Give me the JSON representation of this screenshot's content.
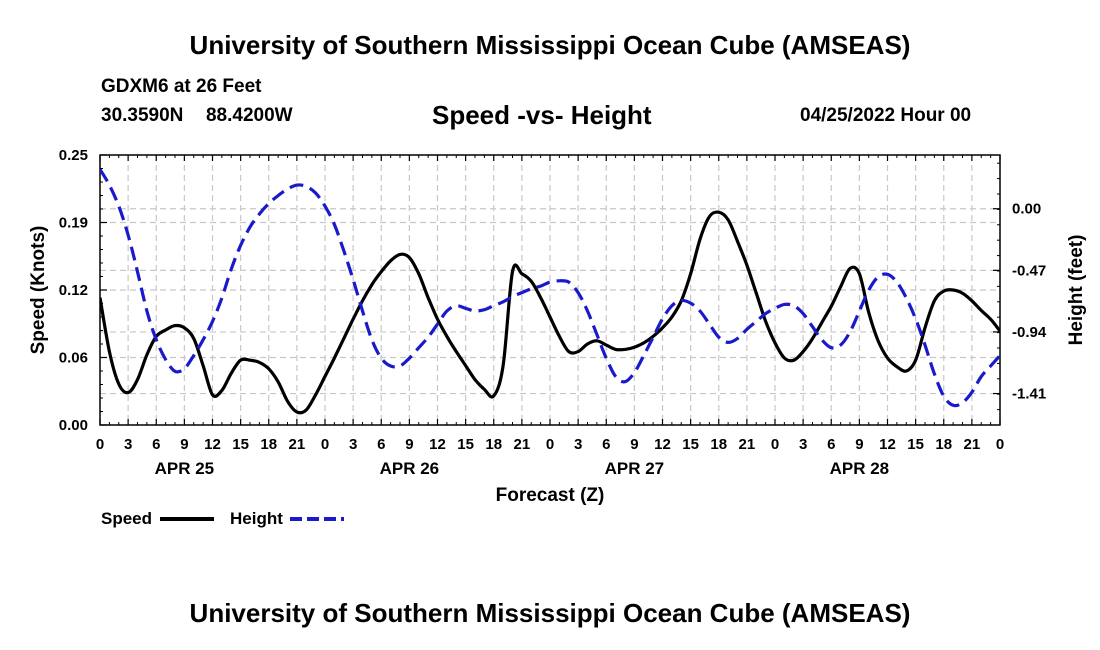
{
  "header": {
    "title": "University of Southern Mississippi Ocean Cube (AMSEAS)",
    "station": "GDXM6 at 26 Feet",
    "lat": "30.3590N",
    "lon": "88.4200W",
    "subtitle": "Speed -vs- Height",
    "datetime": "04/25/2022 Hour 00"
  },
  "footer": {
    "title": "University of Southern Mississippi Ocean Cube (AMSEAS)"
  },
  "colors": {
    "speed": "#000000",
    "height": "#1a1acc",
    "grid": "#c8c8c8"
  },
  "chart_data": {
    "type": "line",
    "xlabel": "Forecast (Z)",
    "ylabel_left": "Speed (Knots)",
    "ylabel_right": "Height (feet)",
    "x_range_hours": [
      0,
      96
    ],
    "x_tick_labels": [
      "0",
      "3",
      "6",
      "9",
      "12",
      "15",
      "18",
      "21",
      "0",
      "3",
      "6",
      "9",
      "12",
      "15",
      "18",
      "21",
      "0",
      "3",
      "6",
      "9",
      "12",
      "15",
      "18",
      "21",
      "0",
      "3",
      "6",
      "9",
      "12",
      "15",
      "18",
      "21",
      "0"
    ],
    "date_labels": [
      {
        "label": "APR 25",
        "hour": 9
      },
      {
        "label": "APR 26",
        "hour": 33
      },
      {
        "label": "APR 27",
        "hour": 57
      },
      {
        "label": "APR 28",
        "hour": 81
      }
    ],
    "y_left": {
      "range": [
        0.0,
        0.25
      ],
      "ticks": [
        "0.00",
        "0.06",
        "0.12",
        "0.19",
        "0.25"
      ],
      "tick_values": [
        0.0,
        0.0625,
        0.125,
        0.1875,
        0.25
      ]
    },
    "y_right": {
      "range": [
        -1.65,
        0.41
      ],
      "ticks": [
        "0.00",
        "-0.47",
        "-0.94",
        "-1.41"
      ],
      "tick_values": [
        0.0,
        -0.47,
        -0.94,
        -1.41
      ]
    },
    "series": [
      {
        "name": "Speed",
        "axis": "left",
        "x": [
          0,
          1,
          2,
          3,
          4,
          5,
          6,
          7,
          8,
          9,
          10,
          11,
          12,
          13,
          14,
          15,
          16,
          17,
          18,
          19,
          20,
          21,
          22,
          23,
          24,
          25,
          26,
          27,
          28,
          29,
          30,
          31,
          32,
          33,
          34,
          35,
          36,
          37,
          38,
          39,
          40,
          41,
          42,
          43,
          44,
          45,
          46,
          47,
          48,
          49,
          50,
          51,
          52,
          53,
          54,
          55,
          56,
          57,
          58,
          59,
          60,
          61,
          62,
          63,
          64,
          65,
          66,
          67,
          68,
          69,
          70,
          71,
          72,
          73,
          74,
          75,
          76,
          77,
          78,
          79,
          80,
          81,
          82,
          83,
          84,
          85,
          86,
          87,
          88,
          89,
          90,
          91,
          92,
          93,
          94,
          95,
          96
        ],
        "values": [
          0.118,
          0.068,
          0.038,
          0.03,
          0.042,
          0.065,
          0.082,
          0.088,
          0.092,
          0.09,
          0.08,
          0.055,
          0.028,
          0.032,
          0.048,
          0.06,
          0.06,
          0.058,
          0.052,
          0.04,
          0.022,
          0.012,
          0.014,
          0.028,
          0.045,
          0.062,
          0.08,
          0.098,
          0.115,
          0.13,
          0.142,
          0.152,
          0.158,
          0.155,
          0.14,
          0.118,
          0.098,
          0.082,
          0.068,
          0.055,
          0.042,
          0.033,
          0.027,
          0.055,
          0.142,
          0.14,
          0.133,
          0.118,
          0.1,
          0.082,
          0.068,
          0.068,
          0.075,
          0.078,
          0.074,
          0.07,
          0.07,
          0.072,
          0.076,
          0.082,
          0.09,
          0.1,
          0.115,
          0.14,
          0.172,
          0.193,
          0.197,
          0.19,
          0.17,
          0.148,
          0.122,
          0.096,
          0.076,
          0.062,
          0.06,
          0.068,
          0.08,
          0.095,
          0.11,
          0.128,
          0.145,
          0.14,
          0.104,
          0.078,
          0.062,
          0.054,
          0.05,
          0.06,
          0.09,
          0.115,
          0.124,
          0.125,
          0.122,
          0.115,
          0.106,
          0.098,
          0.087
        ]
      },
      {
        "name": "Height",
        "axis": "right",
        "x": [
          0,
          1,
          2,
          3,
          4,
          5,
          6,
          7,
          8,
          9,
          10,
          11,
          12,
          13,
          14,
          15,
          16,
          17,
          18,
          19,
          20,
          21,
          22,
          23,
          24,
          25,
          26,
          27,
          28,
          29,
          30,
          31,
          32,
          33,
          34,
          35,
          36,
          37,
          38,
          39,
          40,
          41,
          42,
          43,
          44,
          45,
          46,
          47,
          48,
          49,
          50,
          51,
          52,
          53,
          54,
          55,
          56,
          57,
          58,
          59,
          60,
          61,
          62,
          63,
          64,
          65,
          66,
          67,
          68,
          69,
          70,
          71,
          72,
          73,
          74,
          75,
          76,
          77,
          78,
          79,
          80,
          81,
          82,
          83,
          84,
          85,
          86,
          87,
          88,
          89,
          90,
          91,
          92,
          93,
          94,
          95,
          96
        ],
        "values": [
          0.3,
          0.18,
          0.02,
          -0.2,
          -0.48,
          -0.78,
          -1.0,
          -1.15,
          -1.24,
          -1.22,
          -1.12,
          -1.0,
          -0.86,
          -0.68,
          -0.46,
          -0.28,
          -0.14,
          -0.04,
          0.04,
          0.1,
          0.15,
          0.18,
          0.17,
          0.12,
          0.02,
          -0.12,
          -0.32,
          -0.54,
          -0.78,
          -1.0,
          -1.14,
          -1.2,
          -1.2,
          -1.14,
          -1.06,
          -0.98,
          -0.88,
          -0.78,
          -0.74,
          -0.76,
          -0.78,
          -0.77,
          -0.74,
          -0.71,
          -0.67,
          -0.64,
          -0.61,
          -0.59,
          -0.56,
          -0.55,
          -0.56,
          -0.64,
          -0.78,
          -0.96,
          -1.14,
          -1.28,
          -1.32,
          -1.25,
          -1.12,
          -0.98,
          -0.84,
          -0.74,
          -0.7,
          -0.72,
          -0.78,
          -0.88,
          -0.98,
          -1.02,
          -0.99,
          -0.92,
          -0.86,
          -0.8,
          -0.76,
          -0.73,
          -0.74,
          -0.8,
          -0.9,
          -1.0,
          -1.06,
          -1.04,
          -0.94,
          -0.78,
          -0.62,
          -0.52,
          -0.5,
          -0.56,
          -0.68,
          -0.84,
          -1.04,
          -1.26,
          -1.43,
          -1.5,
          -1.48,
          -1.4,
          -1.28,
          -1.2,
          -1.12
        ]
      }
    ]
  },
  "legend": {
    "items": [
      {
        "label": "Speed",
        "style": "solid"
      },
      {
        "label": "Height",
        "style": "dashed"
      }
    ]
  }
}
